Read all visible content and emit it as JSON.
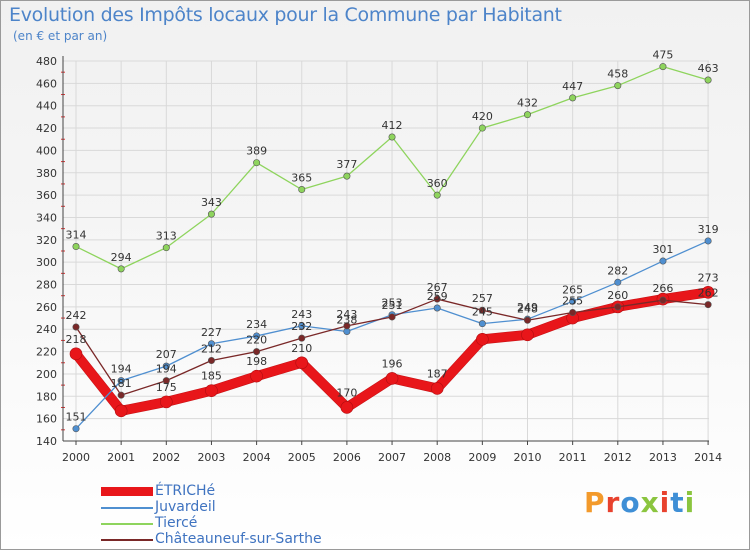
{
  "title": "Evolution des Impôts locaux pour la Commune par Habitant",
  "subtitle": "(en € et par an)",
  "logo_text": "Proxiti",
  "colors": {
    "title": "#4d84c9",
    "grid": "#d9d9d9",
    "axis_text": "#333333",
    "logo": [
      "#f39a2b",
      "#e8422e",
      "#3f8fd6",
      "#8bc53f",
      "#e8422e",
      "#3f8fd6",
      "#8bc53f"
    ]
  },
  "chart_data": {
    "type": "line",
    "title": "Evolution des Impôts locaux pour la Commune par Habitant",
    "subtitle": "(en € et par an)",
    "xlabel": "",
    "ylabel": "",
    "x": [
      "2000",
      "2001",
      "2002",
      "2003",
      "2004",
      "2005",
      "2006",
      "2007",
      "2008",
      "2009",
      "2010",
      "2011",
      "2012",
      "2013",
      "2014"
    ],
    "ylim": [
      140,
      480
    ],
    "yticks": [
      140,
      160,
      180,
      200,
      220,
      240,
      260,
      280,
      300,
      320,
      340,
      360,
      380,
      400,
      420,
      440,
      460,
      480
    ],
    "grid": true,
    "legend_position": "bottom-left",
    "series": [
      {
        "name": "ÉTRICHé",
        "color": "#e8161a",
        "width": 9,
        "values": [
          218,
          167,
          175,
          185,
          198,
          210,
          170,
          196,
          187,
          231,
          235,
          250,
          260,
          267,
          273
        ],
        "labels": [
          "218",
          "",
          "175",
          "185",
          "198",
          "210",
          "170",
          "196",
          "187",
          "",
          "",
          "",
          "",
          "",
          "273"
        ]
      },
      {
        "name": "Juvardeil",
        "color": "#4f8fd0",
        "width": 1.3,
        "values": [
          151,
          194,
          207,
          227,
          234,
          243,
          238,
          253,
          259,
          245,
          249,
          265,
          282,
          301,
          319
        ],
        "labels": [
          "151",
          "194",
          "207",
          "227",
          "234",
          "243",
          "238",
          "253",
          "259",
          "245",
          "249",
          "265",
          "282",
          "301",
          "319"
        ]
      },
      {
        "name": "Tiercé",
        "color": "#8ed45d",
        "width": 1.3,
        "values": [
          314,
          294,
          313,
          343,
          389,
          365,
          377,
          412,
          360,
          420,
          432,
          447,
          458,
          475,
          463
        ],
        "labels": [
          "314",
          "294",
          "313",
          "343",
          "389",
          "365",
          "377",
          "412",
          "360",
          "420",
          "432",
          "447",
          "458",
          "475",
          "463"
        ]
      },
      {
        "name": "Châteauneuf-sur-Sarthe",
        "color": "#7a2828",
        "width": 1.3,
        "values": [
          242,
          181,
          194,
          212,
          220,
          232,
          243,
          251,
          267,
          257,
          248,
          255,
          260,
          266,
          262
        ],
        "labels": [
          "242",
          "181",
          "194",
          "212",
          "220",
          "232",
          "243",
          "251",
          "267",
          "257",
          "248",
          "255",
          "260",
          "266",
          "262"
        ]
      }
    ]
  }
}
